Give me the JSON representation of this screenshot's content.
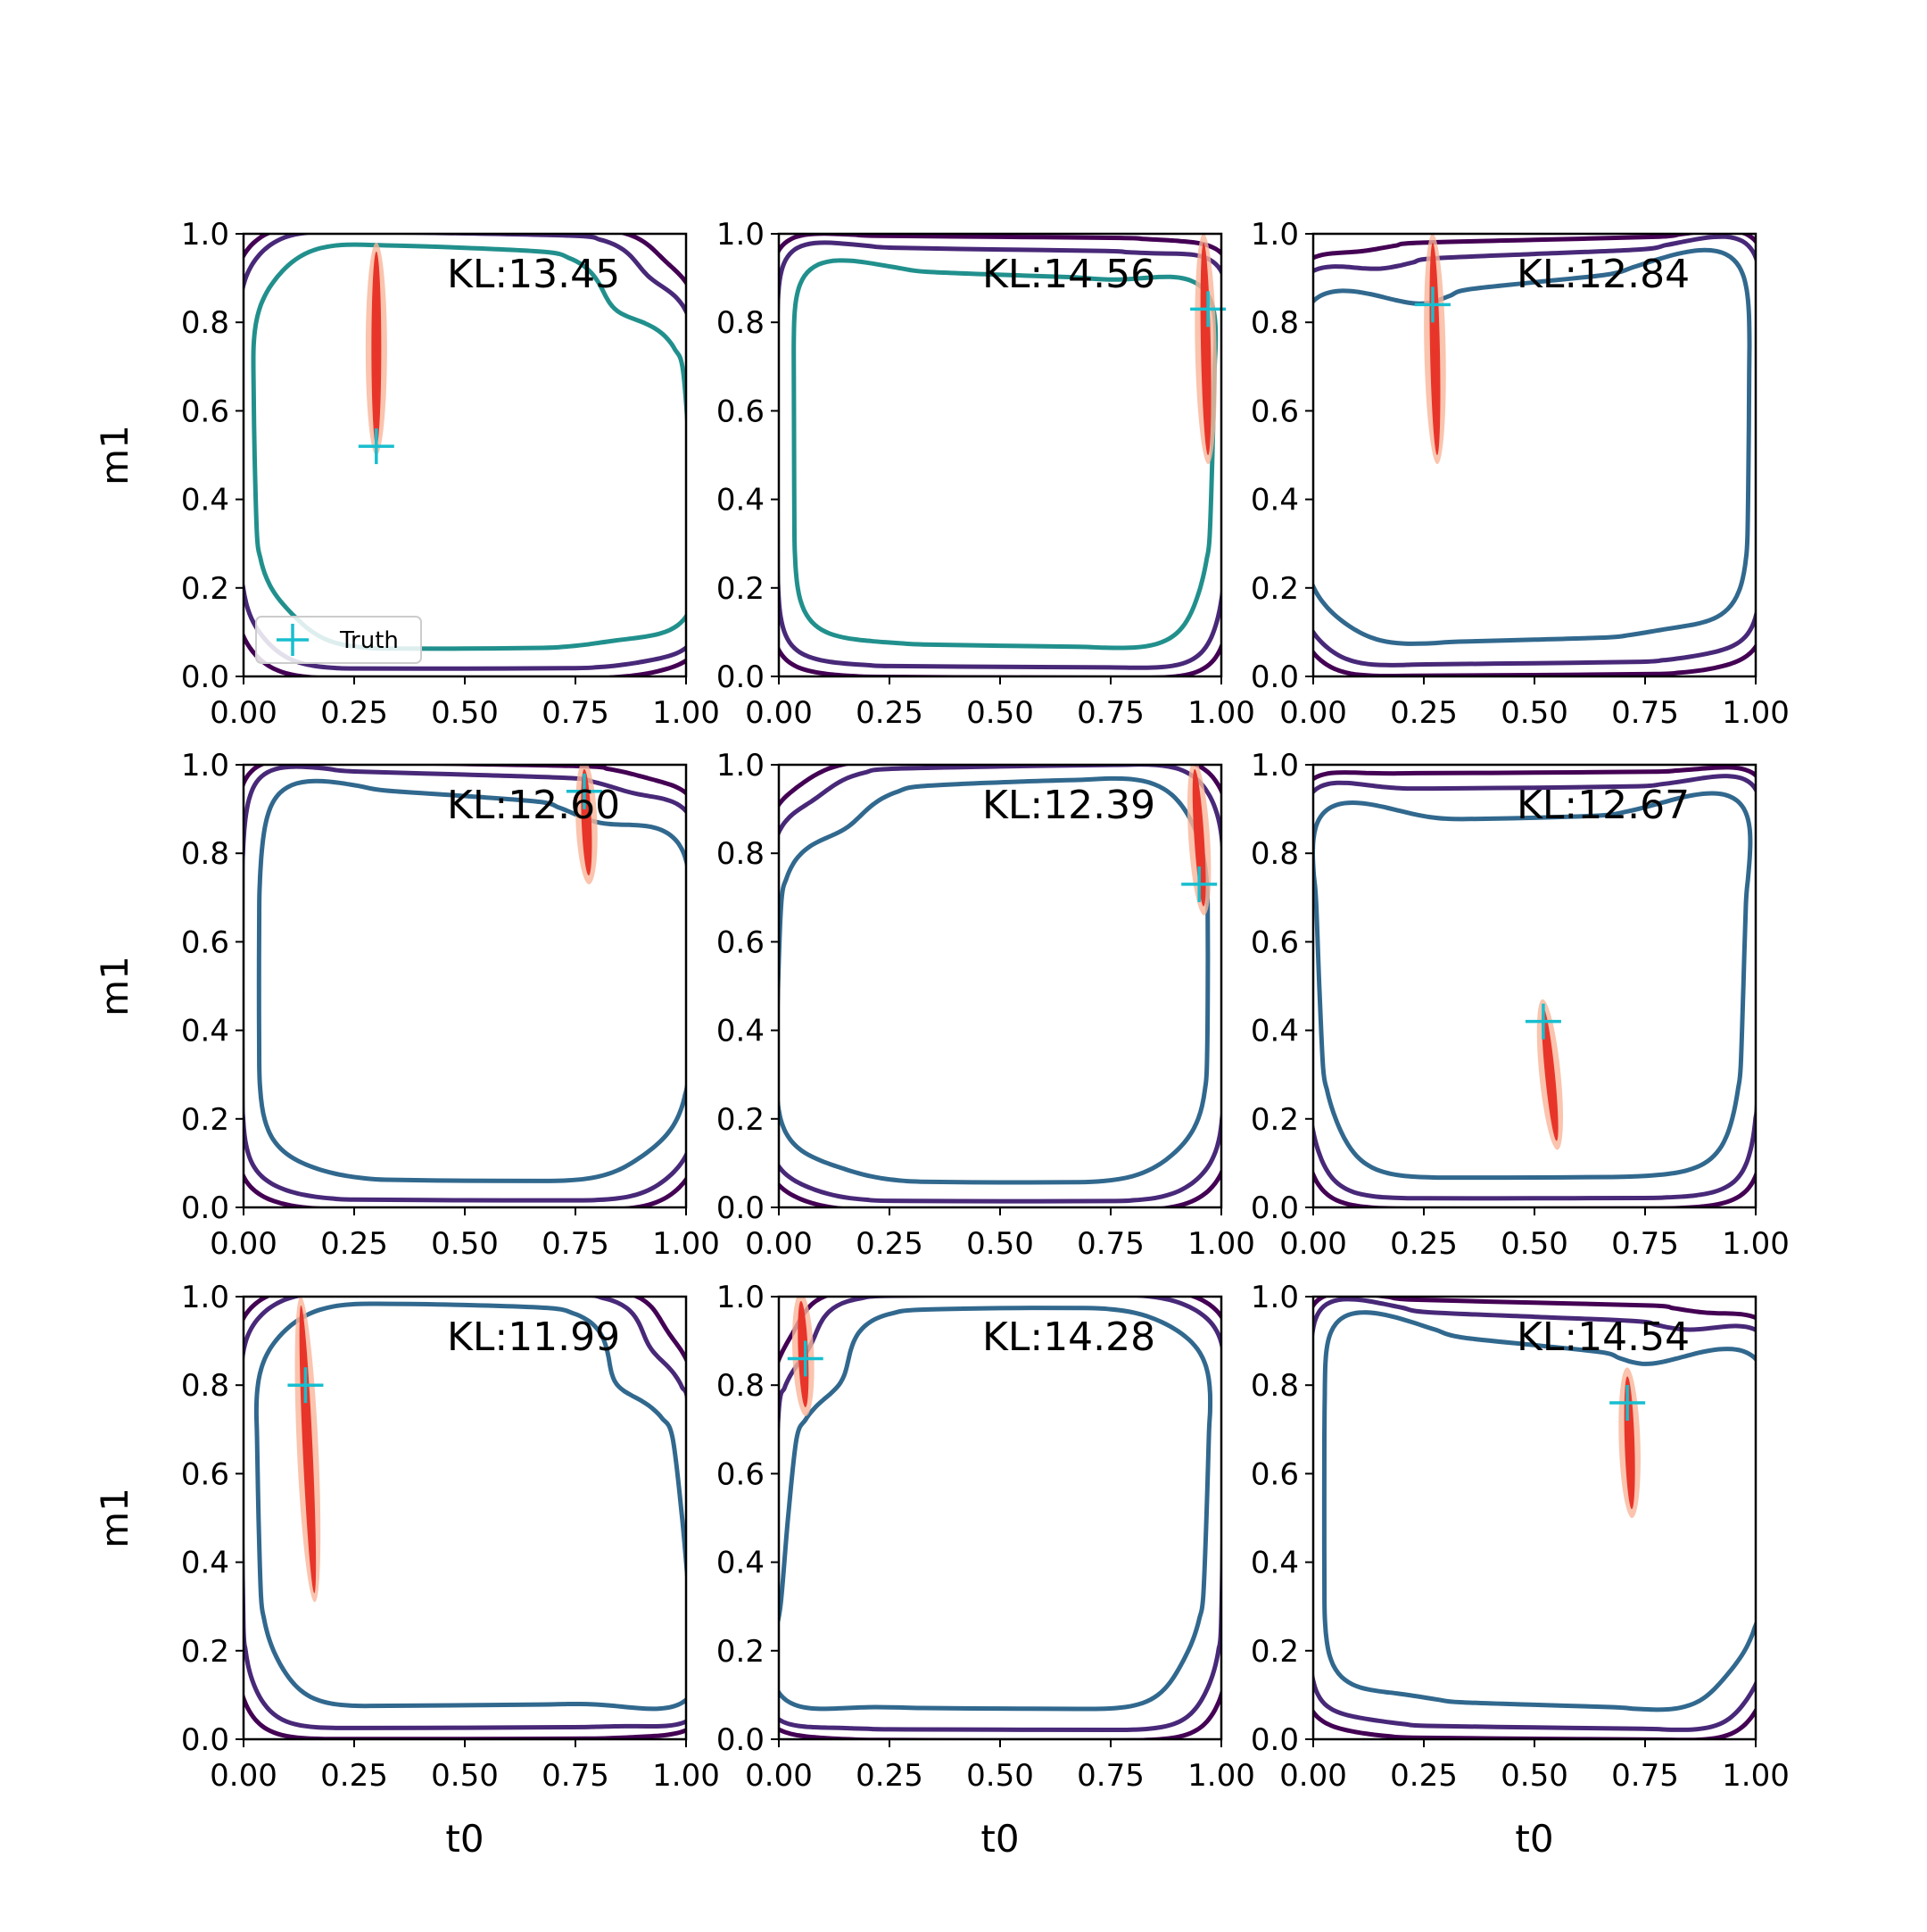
{
  "figure": {
    "rows": 3,
    "cols": 3,
    "ylabel": "m1",
    "xlabel": "t0",
    "legend": {
      "label": "Truth",
      "position": "lower-left",
      "panel": 0
    },
    "truth_marker_color": "#17becf",
    "posterior_color": "#e8352a",
    "posterior_halo_color": "#f9b59a",
    "contour_colors": [
      "#440154",
      "#482878",
      "#3b528b",
      "#31688e",
      "#21908d"
    ]
  },
  "chart_data": [
    {
      "type": "contour",
      "annotation": "KL:13.45",
      "truth": [
        0.3,
        0.52
      ],
      "posterior": {
        "x": [
          0.3,
          0.3
        ],
        "y": [
          0.96,
          0.52
        ]
      }
    },
    {
      "type": "contour",
      "annotation": "KL:14.56",
      "truth": [
        0.97,
        0.83
      ],
      "posterior": {
        "x": [
          0.96,
          0.97
        ],
        "y": [
          0.98,
          0.5
        ]
      }
    },
    {
      "type": "contour",
      "annotation": "KL:12.84",
      "truth": [
        0.27,
        0.84
      ],
      "posterior": {
        "x": [
          0.27,
          0.28
        ],
        "y": [
          0.98,
          0.5
        ]
      }
    },
    {
      "type": "contour",
      "annotation": "KL:12.60",
      "truth": [
        0.77,
        0.94
      ],
      "posterior": {
        "x": [
          0.77,
          0.78
        ],
        "y": [
          0.99,
          0.75
        ]
      }
    },
    {
      "type": "contour",
      "annotation": "KL:12.39",
      "truth": [
        0.95,
        0.73
      ],
      "posterior": {
        "x": [
          0.94,
          0.96
        ],
        "y": [
          0.99,
          0.68
        ]
      }
    },
    {
      "type": "contour",
      "annotation": "KL:12.67",
      "truth": [
        0.52,
        0.42
      ],
      "posterior": {
        "x": [
          0.52,
          0.55
        ],
        "y": [
          0.45,
          0.15
        ]
      }
    },
    {
      "type": "contour",
      "annotation": "KL:11.99",
      "truth": [
        0.14,
        0.8
      ],
      "posterior": {
        "x": [
          0.13,
          0.16
        ],
        "y": [
          0.98,
          0.33
        ]
      }
    },
    {
      "type": "contour",
      "annotation": "KL:14.28",
      "truth": [
        0.06,
        0.86
      ],
      "posterior": {
        "x": [
          0.05,
          0.06
        ],
        "y": [
          0.99,
          0.75
        ]
      }
    },
    {
      "type": "contour",
      "annotation": "KL:14.54",
      "truth": [
        0.71,
        0.76
      ],
      "posterior": {
        "x": [
          0.71,
          0.72
        ],
        "y": [
          0.82,
          0.52
        ]
      }
    }
  ],
  "axes": {
    "xlim": [
      0,
      1
    ],
    "ylim": [
      0,
      1
    ],
    "xticks": [
      "0.00",
      "0.25",
      "0.50",
      "0.75",
      "1.00"
    ],
    "yticks": [
      "0.0",
      "0.2",
      "0.4",
      "0.6",
      "0.8",
      "1.0"
    ],
    "xtick_values": [
      0,
      0.25,
      0.5,
      0.75,
      1.0
    ],
    "ytick_values": [
      0,
      0.2,
      0.4,
      0.6,
      0.8,
      1.0
    ]
  }
}
